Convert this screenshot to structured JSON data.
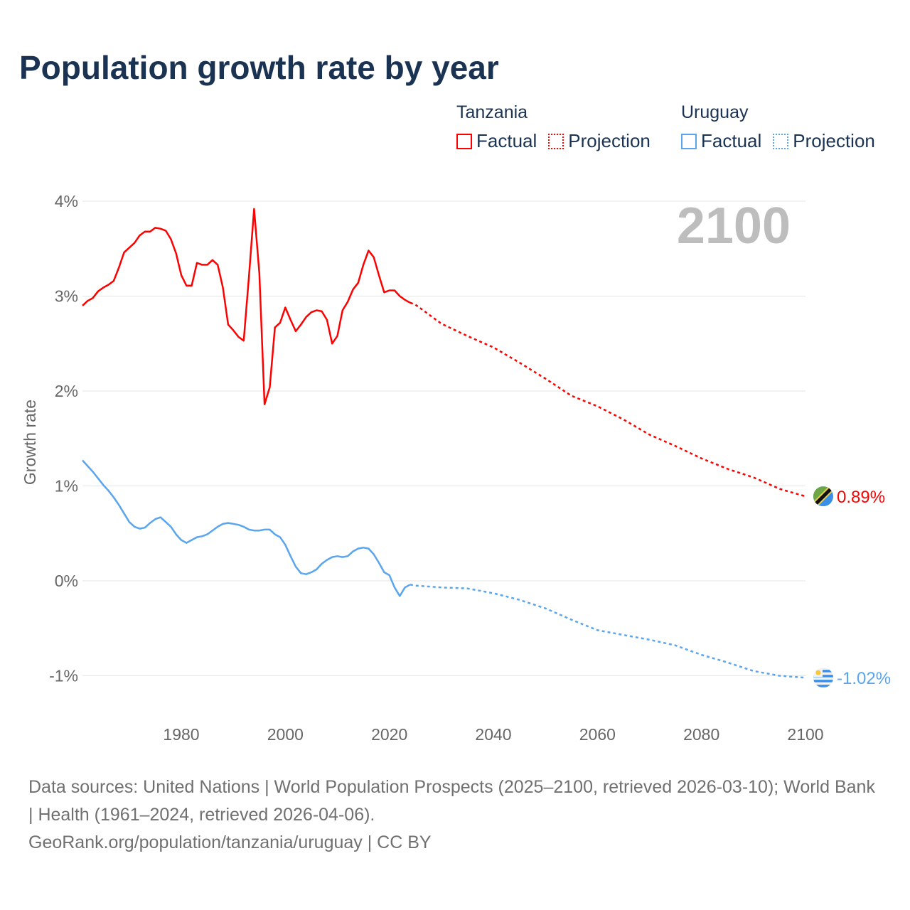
{
  "title": "Population growth rate by year",
  "legend": {
    "groups": [
      {
        "name": "Tanzania",
        "factual": "Factual",
        "projection": "Projection",
        "color": "#ff0000"
      },
      {
        "name": "Uruguay",
        "factual": "Factual",
        "projection": "Projection",
        "color": "#5aa5ee"
      }
    ]
  },
  "current_year": "2100",
  "footer": {
    "sources": "Data sources: United Nations | World Population Prospects (2025–2100, retrieved 2026-03-10); World Bank | Health (1961–2024, retrieved 2026-04-06).",
    "credit": "GeoRank.org/population/tanzania/uruguay | CC BY"
  },
  "chart_data": {
    "type": "line",
    "title": "Population growth rate by year",
    "xlabel": "",
    "ylabel": "Growth rate",
    "xlim": [
      1961,
      2100
    ],
    "ylim": [
      -1.45,
      4.0
    ],
    "grid": true,
    "x_ticks": [
      {
        "value": 1980,
        "label": "1980"
      },
      {
        "value": 2000,
        "label": "2000"
      },
      {
        "value": 2020,
        "label": "2020"
      },
      {
        "value": 2040,
        "label": "2040"
      },
      {
        "value": 2060,
        "label": "2060"
      },
      {
        "value": 2080,
        "label": "2080"
      },
      {
        "value": 2100,
        "label": "2100"
      }
    ],
    "y_ticks": [
      {
        "value": 4,
        "label": "4%"
      },
      {
        "value": 3,
        "label": "3%"
      },
      {
        "value": 2,
        "label": "2%"
      },
      {
        "value": 1,
        "label": "1%"
      },
      {
        "value": 0,
        "label": "0%"
      },
      {
        "value": -1,
        "label": "-1%"
      }
    ],
    "series": [
      {
        "name": "Tanzania",
        "color": "#ff0000",
        "end_label": "0.89%",
        "flag": "tanzania-flag",
        "factual": {
          "x": [
            1961,
            1962,
            1963,
            1964,
            1965,
            1966,
            1967,
            1968,
            1969,
            1970,
            1971,
            1972,
            1973,
            1974,
            1975,
            1976,
            1977,
            1978,
            1979,
            1980,
            1981,
            1982,
            1983,
            1984,
            1985,
            1986,
            1987,
            1988,
            1989,
            1990,
            1991,
            1992,
            1993,
            1994,
            1995,
            1996,
            1997,
            1998,
            1999,
            2000,
            2001,
            2002,
            2003,
            2004,
            2005,
            2006,
            2007,
            2008,
            2009,
            2010,
            2011,
            2012,
            2013,
            2014,
            2015,
            2016,
            2017,
            2018,
            2019,
            2020,
            2021,
            2022,
            2023,
            2024
          ],
          "y": [
            2.9,
            2.95,
            2.98,
            3.05,
            3.09,
            3.12,
            3.16,
            3.3,
            3.46,
            3.51,
            3.56,
            3.64,
            3.68,
            3.68,
            3.72,
            3.71,
            3.69,
            3.6,
            3.45,
            3.22,
            3.11,
            3.11,
            3.35,
            3.33,
            3.33,
            3.38,
            3.33,
            3.09,
            2.7,
            2.64,
            2.57,
            2.53,
            3.2,
            3.92,
            3.24,
            1.86,
            2.04,
            2.67,
            2.72,
            2.88,
            2.75,
            2.63,
            2.7,
            2.78,
            2.83,
            2.85,
            2.84,
            2.75,
            2.5,
            2.58,
            2.85,
            2.94,
            3.07,
            3.14,
            3.33,
            3.48,
            3.41,
            3.22,
            3.04,
            3.06,
            3.06,
            3.0,
            2.96,
            2.93
          ]
        },
        "projection": {
          "x": [
            2024,
            2025,
            2030,
            2035,
            2040,
            2045,
            2050,
            2055,
            2060,
            2065,
            2070,
            2075,
            2080,
            2085,
            2090,
            2095,
            2100
          ],
          "y": [
            2.93,
            2.91,
            2.71,
            2.58,
            2.46,
            2.3,
            2.13,
            1.95,
            1.84,
            1.7,
            1.54,
            1.42,
            1.29,
            1.18,
            1.09,
            0.97,
            0.89
          ]
        }
      },
      {
        "name": "Uruguay",
        "color": "#5aa5ee",
        "end_label": "-1.02%",
        "flag": "uruguay-flag",
        "factual": {
          "x": [
            1961,
            1962,
            1963,
            1964,
            1965,
            1966,
            1967,
            1968,
            1969,
            1970,
            1971,
            1972,
            1973,
            1974,
            1975,
            1976,
            1977,
            1978,
            1979,
            1980,
            1981,
            1982,
            1983,
            1984,
            1985,
            1986,
            1987,
            1988,
            1989,
            1990,
            1991,
            1992,
            1993,
            1994,
            1995,
            1996,
            1997,
            1998,
            1999,
            2000,
            2001,
            2002,
            2003,
            2004,
            2005,
            2006,
            2007,
            2008,
            2009,
            2010,
            2011,
            2012,
            2013,
            2014,
            2015,
            2016,
            2017,
            2018,
            2019,
            2020,
            2021,
            2022,
            2023,
            2024
          ],
          "y": [
            1.27,
            1.21,
            1.15,
            1.08,
            1.01,
            0.95,
            0.88,
            0.8,
            0.71,
            0.62,
            0.57,
            0.55,
            0.56,
            0.61,
            0.65,
            0.67,
            0.62,
            0.57,
            0.49,
            0.43,
            0.4,
            0.43,
            0.46,
            0.47,
            0.49,
            0.53,
            0.57,
            0.6,
            0.61,
            0.6,
            0.59,
            0.57,
            0.54,
            0.53,
            0.53,
            0.54,
            0.54,
            0.49,
            0.46,
            0.38,
            0.26,
            0.15,
            0.08,
            0.07,
            0.09,
            0.12,
            0.18,
            0.22,
            0.25,
            0.26,
            0.25,
            0.26,
            0.31,
            0.34,
            0.35,
            0.34,
            0.28,
            0.19,
            0.09,
            0.06,
            -0.07,
            -0.16,
            -0.07,
            -0.04
          ]
        },
        "projection": {
          "x": [
            2024,
            2025,
            2030,
            2035,
            2040,
            2045,
            2050,
            2055,
            2060,
            2065,
            2070,
            2075,
            2080,
            2085,
            2090,
            2095,
            2100
          ],
          "y": [
            -0.04,
            -0.05,
            -0.07,
            -0.08,
            -0.13,
            -0.2,
            -0.29,
            -0.41,
            -0.52,
            -0.57,
            -0.62,
            -0.68,
            -0.78,
            -0.86,
            -0.95,
            -1.0,
            -1.02
          ]
        }
      }
    ]
  }
}
